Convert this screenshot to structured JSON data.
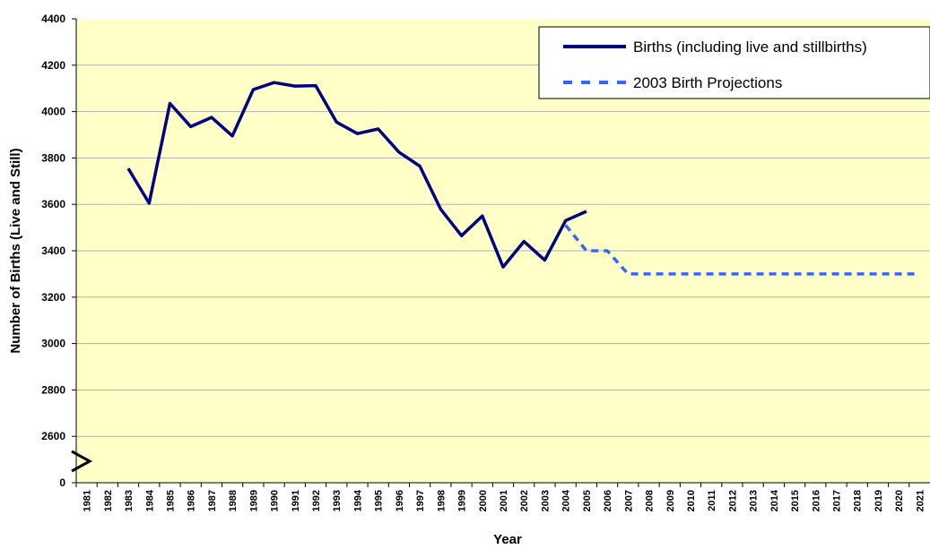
{
  "chart_data": {
    "type": "line",
    "x_label": "Year",
    "y_label": "Number of Births (Live and Still)",
    "categories": [
      "1981",
      "1982",
      "1983",
      "1984",
      "1985",
      "1986",
      "1987",
      "1988",
      "1989",
      "1990",
      "1991",
      "1992",
      "1993",
      "1994",
      "1995",
      "1996",
      "1997",
      "1998",
      "1999",
      "2000",
      "2001",
      "2002",
      "2003",
      "2004",
      "2005",
      "2006",
      "2007",
      "2008",
      "2009",
      "2010",
      "2011",
      "2012",
      "2013",
      "2014",
      "2015",
      "2016",
      "2017",
      "2018",
      "2019",
      "2020",
      "2021"
    ],
    "series": [
      {
        "name": "Births (including live and stillbirths)",
        "color": "#000080",
        "dashed": false,
        "values": [
          null,
          null,
          3755,
          3605,
          4035,
          3935,
          3975,
          3895,
          4095,
          4125,
          4110,
          4112,
          3955,
          3905,
          3925,
          3825,
          3765,
          3580,
          3465,
          3550,
          3330,
          3440,
          3360,
          3530,
          3570,
          null,
          null,
          null,
          null,
          null,
          null,
          null,
          null,
          null,
          null,
          null,
          null,
          null,
          null,
          null,
          null
        ]
      },
      {
        "name": "2003 Birth Projections",
        "color": "#3366ff",
        "dashed": true,
        "values": [
          null,
          null,
          null,
          null,
          null,
          null,
          null,
          null,
          null,
          null,
          null,
          null,
          null,
          null,
          null,
          null,
          null,
          null,
          null,
          null,
          null,
          null,
          null,
          3510,
          3400,
          3400,
          3300,
          3300,
          3300,
          3300,
          3300,
          3300,
          3300,
          3300,
          3300,
          3300,
          3300,
          3300,
          3300,
          3300,
          3300
        ]
      }
    ],
    "ylim": [
      2400,
      4400
    ],
    "yticks": [
      {
        "value": 2400,
        "label": "0"
      },
      2600,
      2800,
      3000,
      3200,
      3400,
      3600,
      3800,
      4000,
      4200,
      4400
    ],
    "grid": true,
    "legend": "top-right"
  }
}
